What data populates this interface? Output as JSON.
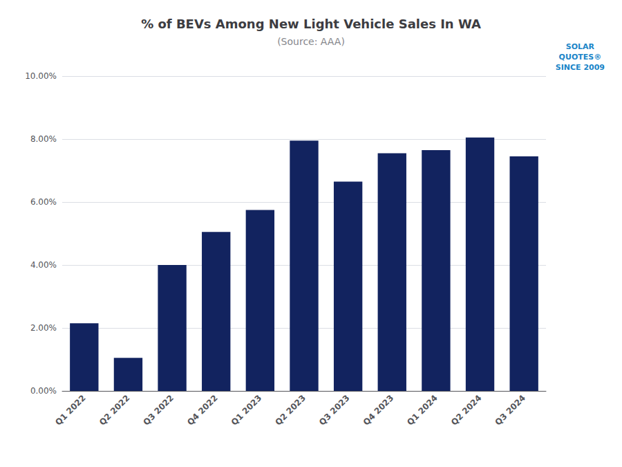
{
  "chart_data": {
    "type": "bar",
    "title": "% of BEVs Among New Light Vehicle Sales In WA",
    "subtitle": "(Source: AAA)",
    "annotation": "SOLAR\nQUOTES®\nSINCE 2009",
    "categories": [
      "Q1 2022",
      "Q2 2022",
      "Q3 2022",
      "Q4 2022",
      "Q1 2023",
      "Q2 2023",
      "Q3 2023",
      "Q4 2023",
      "Q1 2024",
      "Q2 2024",
      "Q3 2024"
    ],
    "values": [
      2.15,
      1.05,
      4.0,
      5.05,
      5.75,
      7.95,
      6.65,
      7.55,
      7.65,
      8.05,
      7.45
    ],
    "color": "#12235f",
    "ylim": [
      0,
      10.0
    ],
    "yticks": [
      {
        "value": 0,
        "label": "0.00%"
      },
      {
        "value": 2.0,
        "label": "2.00%"
      },
      {
        "value": 4.0,
        "label": "4.00%"
      },
      {
        "value": 6.0,
        "label": "6.00%"
      },
      {
        "value": 8.0,
        "label": "8.00%"
      },
      {
        "value": 10.0,
        "label": "10.00%"
      }
    ],
    "grid": true
  }
}
